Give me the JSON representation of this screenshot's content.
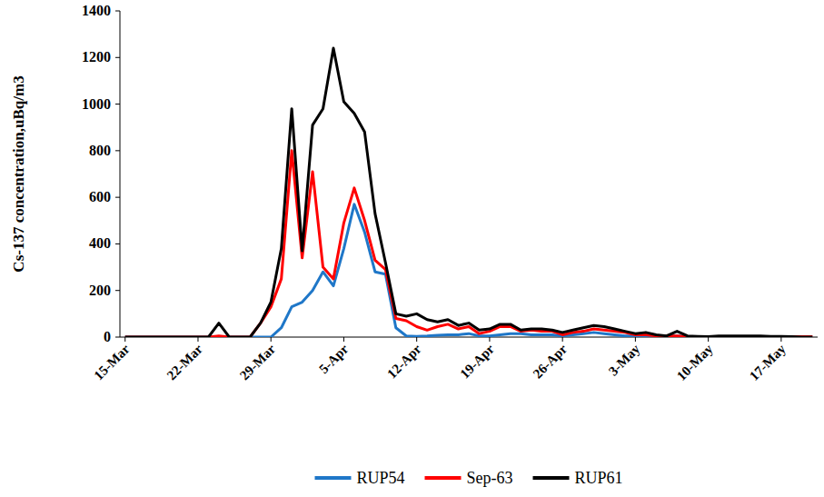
{
  "chart_data": {
    "type": "line",
    "ylabel": "Cs-137 concentration,uBq/m3",
    "categories": [
      "15-Mar",
      null,
      null,
      null,
      null,
      null,
      null,
      "22-Mar",
      null,
      null,
      null,
      null,
      null,
      null,
      "29-Mar",
      null,
      null,
      null,
      null,
      null,
      null,
      "5-Apr",
      null,
      null,
      null,
      null,
      null,
      null,
      "12-Apr",
      null,
      null,
      null,
      null,
      null,
      null,
      "19-Apr",
      null,
      null,
      null,
      null,
      null,
      null,
      "26-Apr",
      null,
      null,
      null,
      null,
      null,
      null,
      "3-May",
      null,
      null,
      null,
      null,
      null,
      null,
      "10-May",
      null,
      null,
      null,
      null,
      null,
      null,
      "17-May",
      null,
      null,
      null
    ],
    "series": [
      {
        "name": "RUP54",
        "color": "#1f77c8",
        "values": [
          0,
          0,
          0,
          0,
          0,
          0,
          0,
          0,
          0,
          0,
          0,
          0,
          0,
          0,
          0,
          40,
          130,
          150,
          200,
          280,
          220,
          380,
          570,
          450,
          280,
          270,
          40,
          5,
          3,
          5,
          8,
          10,
          10,
          15,
          5,
          5,
          10,
          15,
          15,
          10,
          10,
          10,
          5,
          10,
          15,
          20,
          15,
          10,
          5,
          5,
          5,
          3,
          3,
          5,
          2,
          0,
          0,
          0,
          0,
          0,
          0,
          0,
          0,
          0,
          0,
          0,
          0
        ]
      },
      {
        "name": "Sep-63",
        "color": "#ff0000",
        "values": [
          0,
          0,
          0,
          0,
          0,
          0,
          0,
          0,
          0,
          5,
          0,
          0,
          0,
          60,
          130,
          250,
          800,
          340,
          710,
          300,
          250,
          490,
          640,
          500,
          330,
          290,
          80,
          70,
          45,
          30,
          45,
          55,
          35,
          45,
          15,
          25,
          45,
          45,
          25,
          30,
          25,
          25,
          10,
          20,
          25,
          35,
          30,
          25,
          20,
          10,
          10,
          5,
          5,
          5,
          2,
          2,
          2,
          2,
          2,
          2,
          2,
          2,
          2,
          2,
          2,
          2,
          2
        ]
      },
      {
        "name": "RUP61",
        "color": "#000000",
        "values": [
          0,
          0,
          0,
          0,
          0,
          0,
          0,
          0,
          0,
          60,
          0,
          0,
          0,
          60,
          150,
          380,
          980,
          370,
          910,
          980,
          1240,
          1010,
          960,
          880,
          530,
          320,
          100,
          90,
          100,
          75,
          65,
          75,
          50,
          60,
          30,
          35,
          55,
          55,
          30,
          35,
          35,
          30,
          20,
          30,
          40,
          50,
          45,
          35,
          25,
          15,
          20,
          10,
          5,
          25,
          5,
          3,
          2,
          5,
          5,
          5,
          5,
          5,
          3,
          3,
          2,
          0,
          0
        ]
      }
    ],
    "ylim": [
      0,
      1400
    ],
    "yticks": [
      0,
      200,
      400,
      600,
      800,
      1000,
      1200,
      1400
    ],
    "grid": false,
    "legend": "bottom"
  }
}
